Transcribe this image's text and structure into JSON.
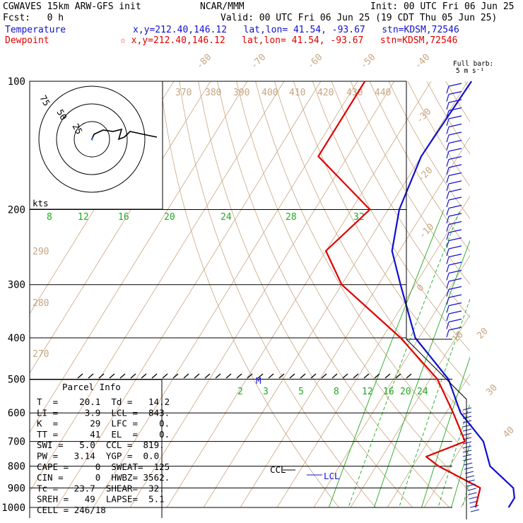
{
  "header": {
    "left1": "CGWAVES 15km ARW-GFS init",
    "center1": "NCAR/MMM",
    "right1": "Init: 00 UTC Fri 06 Jun 25",
    "left2": "Fcst:   0 h",
    "right2": "Valid: 00 UTC Fri 06 Jun 25 (19 CDT Thu 05 Jun 25)",
    "temp_label": "Temperature",
    "temp_loc": "x,y=212.40,146.12   lat,lon= 41.54, -93.67   stn=KDSM,72546",
    "dew_label": "Dewpoint",
    "dew_loc": "☆ x,y=212.40,146.12   lat,lon= 41.54, -93.67   stn=KDSM,72546"
  },
  "barb_key": {
    "line1": "Full barb:",
    "line2": "5 m s⁻¹"
  },
  "hodograph": {
    "unit_label": "kts",
    "ring_labels": [
      "75",
      "50",
      "25"
    ]
  },
  "parcel_info": {
    "title": "Parcel Info",
    "rows": [
      "T  =    20.1  Td =   14.2",
      "LI =     3.9  LCL =  843.",
      "K  =      29  LFC =    0.",
      "TT =      41  EL  =    0.",
      "SWI =   5.0  CCL =  819.",
      "PW =   3.14  YGP =  0.0",
      "CAPE =     0  SWEAT=  125",
      "CIN =      0  HWBZ= 3562.",
      "Tc =   23.7  SHEAR=  32.",
      "SREH =   49  LAPSE=  5.1",
      "CELL = 246/18"
    ]
  },
  "colors": {
    "temperature": "#1010d0",
    "dewpoint": "#e00000",
    "isotherm": "#c8a682",
    "mixing_ratio": "#22aa22",
    "barb": "#1010d0"
  },
  "chart_data": {
    "type": "line",
    "subtype": "skew-T log-P",
    "pressure_levels": [
      100,
      200,
      300,
      400,
      500,
      600,
      700,
      800,
      900,
      1000
    ],
    "isotherm_labels": [
      "-80",
      "-70",
      "-60",
      "-50",
      "-40",
      "-30",
      "-20",
      "-10",
      "0",
      "10",
      "20",
      "30",
      "40"
    ],
    "theta_labels": [
      "370",
      "380",
      "390",
      "400",
      "410",
      "420",
      "430",
      "440",
      "290",
      "280",
      "270"
    ],
    "mixing_ratio_labels_upper": [
      "8",
      "12",
      "16",
      "20",
      "24",
      "28",
      "32"
    ],
    "mixing_ratio_labels_lower": [
      "2",
      "3",
      "5",
      "8",
      "12",
      "16",
      "20",
      "24"
    ],
    "annotations": [
      "M",
      "LCL",
      "CCL"
    ],
    "series": [
      {
        "name": "Temperature",
        "points": [
          [
            100,
            -59
          ],
          [
            150,
            -60
          ],
          [
            200,
            -57
          ],
          [
            250,
            -52
          ],
          [
            300,
            -44
          ],
          [
            400,
            -31
          ],
          [
            500,
            -15
          ],
          [
            600,
            -6
          ],
          [
            700,
            5
          ],
          [
            800,
            11
          ],
          [
            900,
            21
          ],
          [
            950,
            23
          ],
          [
            1000,
            23
          ]
        ]
      },
      {
        "name": "Dewpoint",
        "points": [
          [
            100,
            -88
          ],
          [
            150,
            -88
          ],
          [
            200,
            -65
          ],
          [
            250,
            -70
          ],
          [
            300,
            -60
          ],
          [
            400,
            -35
          ],
          [
            500,
            -18
          ],
          [
            600,
            -8
          ],
          [
            700,
            0
          ],
          [
            760,
            -8
          ],
          [
            800,
            -3
          ],
          [
            900,
            12
          ],
          [
            1000,
            14
          ]
        ]
      }
    ]
  }
}
